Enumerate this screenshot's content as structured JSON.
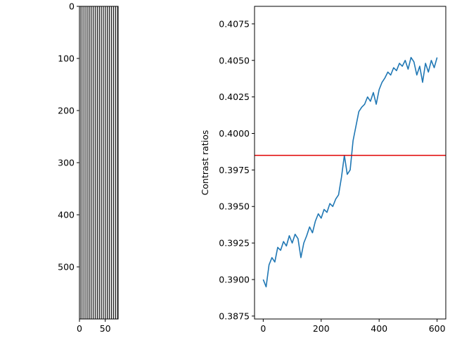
{
  "chart_data": [
    {
      "type": "heatmap",
      "title": "",
      "xlabel": "",
      "ylabel": "",
      "xlim": [
        0,
        75
      ],
      "ylim": [
        600,
        0
      ],
      "xticks": [
        0,
        50
      ],
      "yticks": [
        0,
        100,
        200,
        300,
        400,
        500
      ],
      "pattern": "vertical-stripes",
      "stripe_count": 19,
      "colormap": "gray"
    },
    {
      "type": "line",
      "title": "",
      "xlabel": "",
      "ylabel": "Contrast ratios",
      "xlim": [
        -30,
        630
      ],
      "ylim": [
        0.3873,
        0.4087
      ],
      "xticks": [
        0,
        200,
        400,
        600
      ],
      "yticks": [
        0.3875,
        0.39,
        0.3925,
        0.395,
        0.3975,
        0.4,
        0.4025,
        0.405,
        0.4075
      ],
      "ytick_labels": [
        "0.3875",
        "0.3900",
        "0.3925",
        "0.3950",
        "0.3975",
        "0.4000",
        "0.4025",
        "0.4050",
        "0.4075"
      ],
      "series": [
        {
          "color": "#1f77b4",
          "x": [
            0,
            10,
            20,
            30,
            40,
            50,
            60,
            70,
            80,
            90,
            100,
            110,
            120,
            130,
            140,
            150,
            160,
            170,
            180,
            190,
            200,
            210,
            220,
            230,
            240,
            250,
            260,
            270,
            280,
            290,
            300,
            310,
            320,
            330,
            340,
            350,
            360,
            370,
            380,
            390,
            400,
            410,
            420,
            430,
            440,
            450,
            460,
            470,
            480,
            490,
            500,
            510,
            520,
            530,
            540,
            550,
            560,
            570,
            580,
            590,
            600
          ],
          "values": [
            0.39,
            0.3895,
            0.391,
            0.3915,
            0.3912,
            0.3922,
            0.392,
            0.3926,
            0.3923,
            0.393,
            0.3925,
            0.3931,
            0.3928,
            0.3915,
            0.3925,
            0.393,
            0.3936,
            0.3932,
            0.394,
            0.3945,
            0.3942,
            0.3948,
            0.3946,
            0.3952,
            0.395,
            0.3955,
            0.3958,
            0.397,
            0.3985,
            0.3972,
            0.3975,
            0.3995,
            0.4005,
            0.4015,
            0.4018,
            0.402,
            0.4025,
            0.4022,
            0.4028,
            0.402,
            0.403,
            0.4035,
            0.4038,
            0.4042,
            0.404,
            0.4045,
            0.4043,
            0.4048,
            0.4046,
            0.405,
            0.4044,
            0.4052,
            0.4049,
            0.404,
            0.4046,
            0.4035,
            0.4048,
            0.4042,
            0.405,
            0.4045,
            0.4052
          ]
        }
      ],
      "hline": {
        "y": 0.3985,
        "color": "#e00000"
      }
    }
  ]
}
